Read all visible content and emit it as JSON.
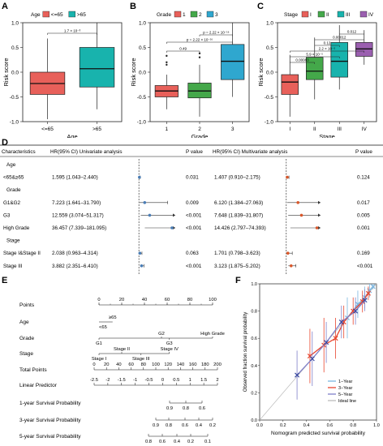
{
  "colors": {
    "red": "#e8605a",
    "green": "#44a84a",
    "blue": "#2fa7cf",
    "purple": "#9b5fb0",
    "teal": "#18b3ad",
    "forest_uni": "#4a7db5",
    "forest_multi": "#d9572a",
    "y1": "#7bb6e0",
    "y3": "#e8452e",
    "y5": "#8080c8"
  },
  "chart_data": [
    {
      "panel": "A",
      "type": "box",
      "legend_title": "Age",
      "legend": [
        "<=65",
        ">65"
      ],
      "categories": [
        "<=65",
        ">65"
      ],
      "ylabel": "Risk score",
      "xlabel": "Age",
      "ylim": [
        -1.0,
        1.0
      ],
      "yticks": [
        "-1.0",
        "-0.5",
        "0.0",
        "0.5",
        "1.0"
      ],
      "boxes": [
        {
          "min": -0.95,
          "q1": -0.45,
          "median": -0.23,
          "q3": 0.0,
          "max": 0.68
        },
        {
          "min": -0.75,
          "q1": -0.3,
          "median": 0.07,
          "q3": 0.5,
          "max": 1.0
        }
      ],
      "annotations": [
        "1.7 × 10⁻³"
      ]
    },
    {
      "panel": "B",
      "type": "box",
      "legend_title": "Grade",
      "legend": [
        "1",
        "2",
        "3"
      ],
      "categories": [
        "1",
        "2",
        "3"
      ],
      "ylabel": "Risk score",
      "xlabel": "Grade",
      "ylim": [
        -1.0,
        1.0
      ],
      "yticks": [
        "-1.0",
        "-0.5",
        "0.0",
        "0.5",
        "1.0"
      ],
      "boxes": [
        {
          "min": -0.75,
          "q1": -0.5,
          "median": -0.38,
          "q3": -0.27,
          "max": -0.05,
          "outliers": [
            0.15,
            0.2,
            0.33
          ]
        },
        {
          "min": -0.9,
          "q1": -0.52,
          "median": -0.38,
          "q3": -0.22,
          "max": 0.15,
          "outliers": [
            0.3,
            0.38
          ]
        },
        {
          "min": -0.5,
          "q1": -0.15,
          "median": 0.22,
          "q3": 0.56,
          "max": 1.0
        }
      ],
      "annotations": [
        "0.49",
        "p = 2.22 × 10⁻¹⁶",
        "p = 2.22 × 10⁻¹⁶"
      ]
    },
    {
      "panel": "C",
      "type": "box",
      "legend_title": "Stage",
      "legend": [
        "I",
        "II",
        "III",
        "IV"
      ],
      "categories": [
        "I",
        "II",
        "III",
        "IV"
      ],
      "ylabel": "Risk score",
      "xlabel": "Stage",
      "ylim": [
        -1.0,
        1.0
      ],
      "yticks": [
        "-1.0",
        "-0.5",
        "0.0",
        "0.5",
        "1.0"
      ],
      "boxes": [
        {
          "min": -0.9,
          "q1": -0.45,
          "median": -0.2,
          "q3": -0.05,
          "max": 0.35
        },
        {
          "min": -0.55,
          "q1": -0.15,
          "median": 0.02,
          "q3": 0.3,
          "max": 0.7
        },
        {
          "min": -0.35,
          "q1": -0.1,
          "median": 0.22,
          "q3": 0.6,
          "max": 0.95
        },
        {
          "min": 0.15,
          "q1": 0.32,
          "median": 0.47,
          "q3": 0.6,
          "max": 0.85
        }
      ],
      "annotations": [
        "0.012",
        "0.00012",
        "0.12",
        "2.2 × 10⁻⁵",
        "5.9 × 10⁻⁵",
        "0.00083"
      ]
    },
    {
      "panel": "D",
      "type": "table",
      "headers": [
        "Characteristics",
        "HR(95% CI) Univariate analysis",
        "P value",
        "HR(95% CI) Multivariate analysis",
        "P value"
      ],
      "rows": [
        {
          "label": "Age",
          "group": true
        },
        {
          "label": "<65&≥65",
          "uni": "1.595 (1.043–2.440)",
          "p1": "0.031",
          "multi": "1.407 (0.910–2.175)",
          "p2": "0.124",
          "hr1": 1.595,
          "lo1": 1.043,
          "hi1": 2.44,
          "hr2": 1.407,
          "lo2": 0.91,
          "hi2": 2.175
        },
        {
          "label": "Grade",
          "group": true
        },
        {
          "label": "G1&G2",
          "uni": "7.223 (1.641–31.790)",
          "p1": "0.009",
          "multi": "6.120 (1.384–27.063)",
          "p2": "0.017",
          "hr1": 7.223,
          "lo1": 1.641,
          "hi1": 31.79,
          "hr2": 6.12,
          "lo2": 1.384,
          "hi2": 27.063
        },
        {
          "label": "G3",
          "uni": "12.559 (3.074–51.317)",
          "p1": "<0.001",
          "multi": "7.648 (1.839–31.807)",
          "p2": "0.005",
          "hr1": 12.559,
          "lo1": 3.074,
          "hi1": 51.317,
          "hr2": 7.648,
          "lo2": 1.839,
          "hi2": 31.807
        },
        {
          "label": "High Grade",
          "uni": "36.457 (7.339–181.095)",
          "p1": "<0.001",
          "multi": "14.426 (2.797–74.393)",
          "p2": "0.001",
          "hr1": 36.457,
          "lo1": 7.339,
          "hi1": 181.095,
          "hr2": 14.426,
          "lo2": 2.797,
          "hi2": 74.393
        },
        {
          "label": "Stage",
          "group": true
        },
        {
          "label": "Stage I&Stage II",
          "uni": "2.038 (0.963–4.314)",
          "p1": "0.063",
          "multi": "1.701 (0.798–3.623)",
          "p2": "0.169",
          "hr1": 2.038,
          "lo1": 0.963,
          "hi1": 4.314,
          "hr2": 1.701,
          "lo2": 0.798,
          "hi2": 3.623
        },
        {
          "label": "Stage III",
          "uni": "3.882 (2.351–6.410)",
          "p1": "<0.001",
          "multi": "3.123 (1.875–5.202)",
          "p2": "<0.001",
          "hr1": 3.882,
          "lo1": 2.351,
          "hi1": 6.41,
          "hr2": 3.123,
          "lo2": 1.875,
          "hi2": 5.202
        },
        {
          "label": "Stage IV",
          "uni": "8.977 (4.845–16.634)",
          "p1": "<0.001",
          "multi": "5.823 (3.067–11.056)",
          "p2": "<0.001",
          "hr1": 8.977,
          "lo1": 4.845,
          "hi1": 16.634,
          "hr2": 5.823,
          "lo2": 3.067,
          "hi2": 11.056
        }
      ],
      "uni_ticks": [
        "0",
        "10",
        "20",
        "30",
        "40"
      ],
      "uni_range": [
        0,
        40
      ],
      "multi_ticks": [
        "4",
        "8",
        "12",
        "16"
      ],
      "multi_range": [
        0,
        16
      ]
    },
    {
      "panel": "E",
      "type": "nomogram",
      "rows": [
        "Points",
        "Age",
        "Grade",
        "Stage",
        "Total Points",
        "Linear Predictor",
        "1-year Survival Probability",
        "3-year Survival Probability",
        "5-year Survival Probability"
      ],
      "points_ticks": [
        "0",
        "20",
        "40",
        "60",
        "80",
        "100"
      ],
      "age_labels": [
        "<65",
        "≥65"
      ],
      "grade_labels": [
        "G1",
        "G2",
        "G3",
        "High Grade"
      ],
      "stage_labels": [
        "Stage I",
        "Stage II",
        "Stage III",
        "Stage IV"
      ],
      "total_ticks": [
        "0",
        "20",
        "40",
        "60",
        "80",
        "100",
        "120",
        "140",
        "160",
        "180",
        "200"
      ],
      "lp_ticks": [
        "-2.5",
        "-2",
        "-1.5",
        "-1",
        "-0.5",
        "0",
        "0.5",
        "1",
        "1.5",
        "2"
      ],
      "surv1_ticks": [
        "0.9",
        "0.8",
        "0.6"
      ],
      "surv3_ticks": [
        "0.9",
        "0.8",
        "0.6",
        "0.4",
        "0.2"
      ],
      "surv5_ticks": [
        "0.8",
        "0.6",
        "0.4",
        "0.2",
        "0.1"
      ]
    },
    {
      "panel": "F",
      "type": "line",
      "xlabel": "Nomogram predicted survival probability",
      "ylabel": "Observed fraction survival probability",
      "xlim": [
        0,
        1.0
      ],
      "ylim": [
        0,
        1.0
      ],
      "xticks": [
        "0.0",
        "0.2",
        "0.4",
        "0.6",
        "0.8",
        "1.0"
      ],
      "yticks": [
        "0.0",
        "0.2",
        "0.4",
        "0.6",
        "0.8",
        "1.0"
      ],
      "legend": [
        "1−Year",
        "3−Year",
        "5−Year",
        "Ideal line"
      ],
      "series": [
        {
          "name": "1−Year",
          "x": [
            0.75,
            0.84,
            0.9,
            0.94,
            0.97
          ],
          "y": [
            0.75,
            0.85,
            0.9,
            0.95,
            0.98
          ],
          "err": [
            0.15,
            0.1,
            0.08,
            0.05,
            0.02
          ]
        },
        {
          "name": "3−Year",
          "x": [
            0.43,
            0.55,
            0.65,
            0.72,
            0.8,
            0.88,
            0.93
          ],
          "y": [
            0.47,
            0.55,
            0.6,
            0.72,
            0.8,
            0.87,
            0.93
          ],
          "err": [
            0.2,
            0.2,
            0.15,
            0.12,
            0.1,
            0.08,
            0.05
          ]
        },
        {
          "name": "5−Year",
          "x": [
            0.32,
            0.45,
            0.57,
            0.7,
            0.82,
            0.9
          ],
          "y": [
            0.33,
            0.45,
            0.57,
            0.72,
            0.8,
            0.88
          ],
          "err": [
            0.18,
            0.2,
            0.15,
            0.12,
            0.1,
            0.08
          ]
        }
      ]
    }
  ],
  "panel_labels": [
    "A",
    "B",
    "C",
    "D",
    "E",
    "F"
  ]
}
